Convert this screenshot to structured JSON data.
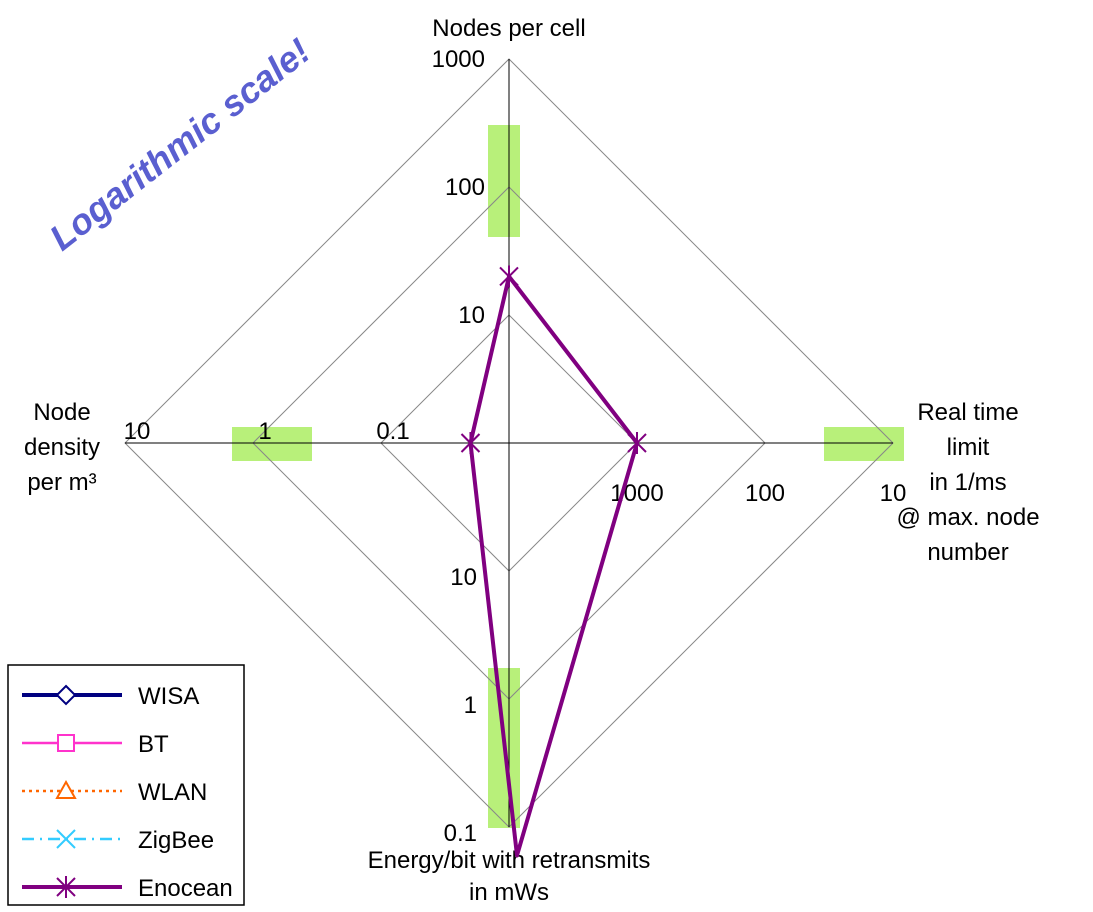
{
  "chart_data": {
    "type": "radar",
    "log_scale": true,
    "annotation": "Logarithmic scale!",
    "axes": [
      {
        "label_lines": [
          "Nodes per cell"
        ],
        "ticks": [
          "10",
          "100",
          "1000"
        ],
        "direction": "up"
      },
      {
        "label_lines": [
          "Real time",
          "limit",
          "in 1/ms",
          "@ max. node",
          "number"
        ],
        "ticks": [
          "1000",
          "100",
          "10"
        ],
        "direction": "right"
      },
      {
        "label_lines": [
          "Energy/bit with retransmits",
          "in mWs"
        ],
        "ticks": [
          "10",
          "1",
          "0.1"
        ],
        "direction": "down"
      },
      {
        "label_lines": [
          "Node",
          "density",
          "per m³"
        ],
        "ticks": [
          "0.1",
          "1",
          "10"
        ],
        "direction": "left"
      }
    ],
    "highlight_color": "#b8f07a",
    "series": [
      {
        "name": "WISA",
        "color": "#000080",
        "marker": "diamond",
        "dash": "solid",
        "values": []
      },
      {
        "name": "BT",
        "color": "#ff33cc",
        "marker": "square",
        "dash": "solid",
        "values": []
      },
      {
        "name": "WLAN",
        "color": "#ff6600",
        "marker": "triangle",
        "dash": "dotted",
        "values": []
      },
      {
        "name": "ZigBee",
        "color": "#33ccff",
        "marker": "x",
        "dash": "dashdot",
        "values": []
      },
      {
        "name": "Enocean",
        "color": "#800080",
        "marker": "star",
        "dash": "solid",
        "values": [
          {
            "axis": "Nodes per cell",
            "value": 20
          },
          {
            "axis": "Real time limit in 1/ms @ max. node number",
            "value": 1000
          },
          {
            "axis": "Energy/bit with retransmits in mWs",
            "value": 0.06
          },
          {
            "axis": "Node density per m³",
            "value": 0.02
          }
        ]
      }
    ],
    "legend_position": "bottom-left"
  }
}
